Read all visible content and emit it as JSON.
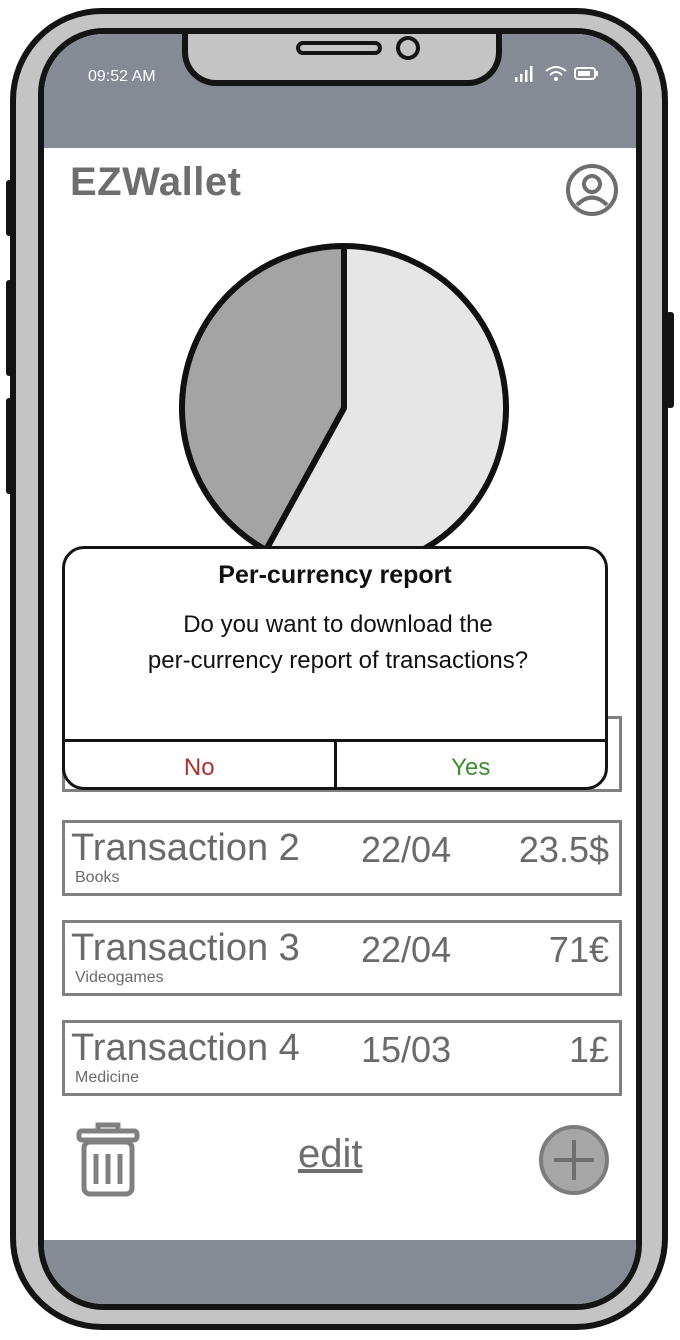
{
  "status_bar": {
    "time": "09:52 AM",
    "icons": [
      "signal-icon",
      "wifi-icon",
      "battery-icon"
    ]
  },
  "app": {
    "title": "EZWallet",
    "profile_icon": "user-circle-icon"
  },
  "chart_data": {
    "type": "pie",
    "values": [
      58,
      42
    ],
    "colors": [
      "#e6e6e6",
      "#a4a4a4"
    ]
  },
  "transactions": [
    {
      "name": "Transaction 2",
      "category": "Books",
      "date": "22/04",
      "amount": "23.5$"
    },
    {
      "name": "Transaction 3",
      "category": "Videogames",
      "date": "22/04",
      "amount": "71€"
    },
    {
      "name": "Transaction 4",
      "category": "Medicine",
      "date": "15/03",
      "amount": "1£"
    }
  ],
  "toolbar": {
    "delete_icon": "trash-icon",
    "edit_label": "edit",
    "add_icon": "plus-circle-icon"
  },
  "dialog": {
    "title": "Per-currency report",
    "message_line1": "Do you want to download the",
    "message_line2": "per-currency report of transactions?",
    "no_label": "No",
    "yes_label": "Yes",
    "no_color": "#b0302a",
    "yes_color": "#3e8e2f"
  }
}
